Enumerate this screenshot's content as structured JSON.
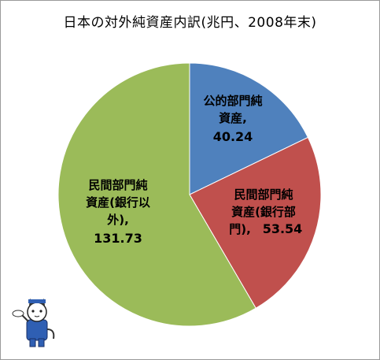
{
  "chart_data": {
    "type": "pie",
    "title": "日本の対外純資産内訳(兆円、2008年末)",
    "slices": [
      {
        "label_lines": [
          "公的部門純",
          "資産,"
        ],
        "value_text": "40.24",
        "value": 40.24,
        "color": "#4f81bd"
      },
      {
        "label_lines": [
          "民間部門純",
          "資産(銀行部",
          "門),"
        ],
        "value_text": "53.54",
        "value": 53.54,
        "color": "#c0504d"
      },
      {
        "label_lines": [
          "民間部門純",
          "資産(銀行以",
          "外),"
        ],
        "value_text": "131.73",
        "value": 131.73,
        "color": "#9bbb59"
      }
    ]
  },
  "mascot": {
    "icon": "cat-mascot-icon"
  }
}
